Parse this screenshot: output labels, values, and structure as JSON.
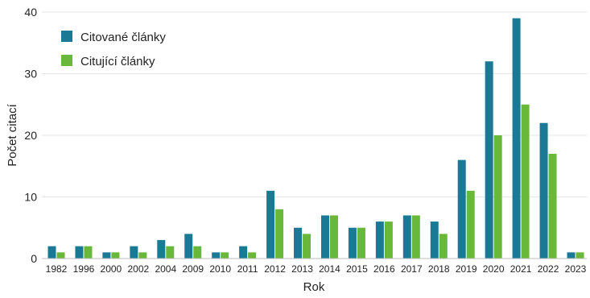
{
  "chart_data": {
    "type": "bar",
    "xlabel": "Rok",
    "ylabel": "Počet citací",
    "ylim": [
      0,
      40
    ],
    "yticks": [
      0,
      10,
      20,
      30,
      40
    ],
    "grid": true,
    "legend_position": "top-left",
    "categories": [
      "1982",
      "1996",
      "2000",
      "2002",
      "2004",
      "2009",
      "2010",
      "2011",
      "2012",
      "2013",
      "2014",
      "2015",
      "2016",
      "2017",
      "2018",
      "2019",
      "2020",
      "2021",
      "2022",
      "2023"
    ],
    "series": [
      {
        "name": "Citované články",
        "color": "#1a7a96",
        "values": [
          2,
          2,
          1,
          2,
          3,
          4,
          1,
          2,
          11,
          5,
          7,
          5,
          6,
          7,
          6,
          16,
          32,
          39,
          22,
          1
        ]
      },
      {
        "name": "Citující články",
        "color": "#6ab83a",
        "values": [
          1,
          2,
          1,
          1,
          2,
          2,
          1,
          1,
          8,
          4,
          7,
          5,
          6,
          7,
          4,
          11,
          20,
          25,
          17,
          1
        ]
      }
    ]
  }
}
